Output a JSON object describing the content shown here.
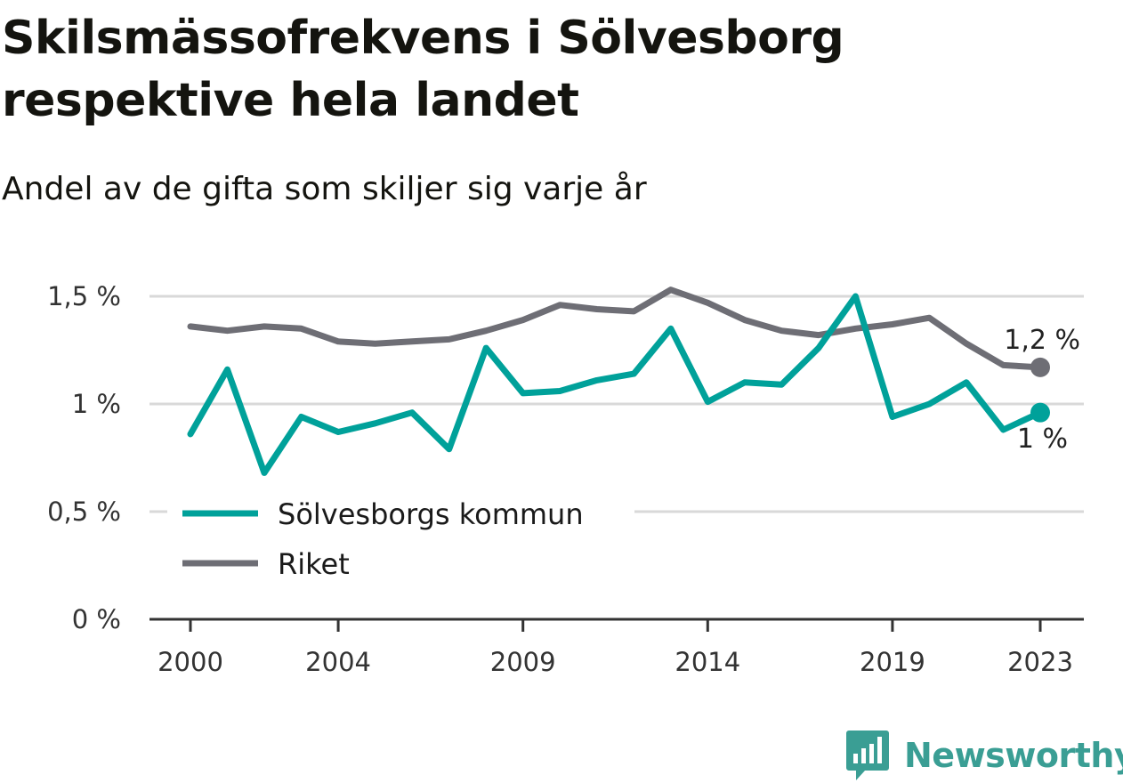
{
  "header": {
    "title": "Skilsmässofrekvens i Sölvesborg respektive hela landet",
    "subtitle": "Andel av de gifta som skiljer sig varje år"
  },
  "brand": {
    "name": "Newsworthy",
    "icon": "newsworthy-logo-icon"
  },
  "colors": {
    "solvesborg": "#00a19a",
    "riket": "#6e6e75",
    "grid": "#d9d9d9",
    "axis": "#333333",
    "brand": "#3a9e94"
  },
  "chart_data": {
    "type": "line",
    "title": "Skilsmässofrekvens i Sölvesborg respektive hela landet",
    "subtitle": "Andel av de gifta som skiljer sig varje år",
    "xlabel": "",
    "ylabel": "",
    "x": [
      2000,
      2001,
      2002,
      2003,
      2004,
      2005,
      2006,
      2007,
      2008,
      2009,
      2010,
      2011,
      2012,
      2013,
      2014,
      2015,
      2016,
      2017,
      2018,
      2019,
      2020,
      2021,
      2022,
      2023
    ],
    "x_tick_labels": [
      "2000",
      "2004",
      "2009",
      "2014",
      "2019",
      "2023"
    ],
    "x_tick_values": [
      2000,
      2004,
      2009,
      2014,
      2019,
      2023
    ],
    "y_tick_labels": [
      "0 %",
      "0,5 %",
      "1 %",
      "1,5 %"
    ],
    "y_tick_values": [
      0,
      0.5,
      1,
      1.5
    ],
    "ylim": [
      0,
      1.55
    ],
    "grid": true,
    "legend_position": "bottom-left",
    "series": [
      {
        "key": "solvesborg",
        "name": "Sölvesborgs kommun",
        "color": "#00a19a",
        "end_label": "1 %",
        "values": [
          0.86,
          1.16,
          0.68,
          0.94,
          0.87,
          0.91,
          0.96,
          0.79,
          1.26,
          1.05,
          1.06,
          1.11,
          1.14,
          1.35,
          1.01,
          1.1,
          1.09,
          1.26,
          1.5,
          0.94,
          1.0,
          1.1,
          0.88,
          0.96
        ]
      },
      {
        "key": "riket",
        "name": "Riket",
        "color": "#6e6e75",
        "end_label": "1,2 %",
        "values": [
          1.36,
          1.34,
          1.36,
          1.35,
          1.29,
          1.28,
          1.29,
          1.3,
          1.34,
          1.39,
          1.46,
          1.44,
          1.43,
          1.53,
          1.47,
          1.39,
          1.34,
          1.32,
          1.35,
          1.37,
          1.4,
          1.28,
          1.18,
          1.17
        ]
      }
    ]
  }
}
